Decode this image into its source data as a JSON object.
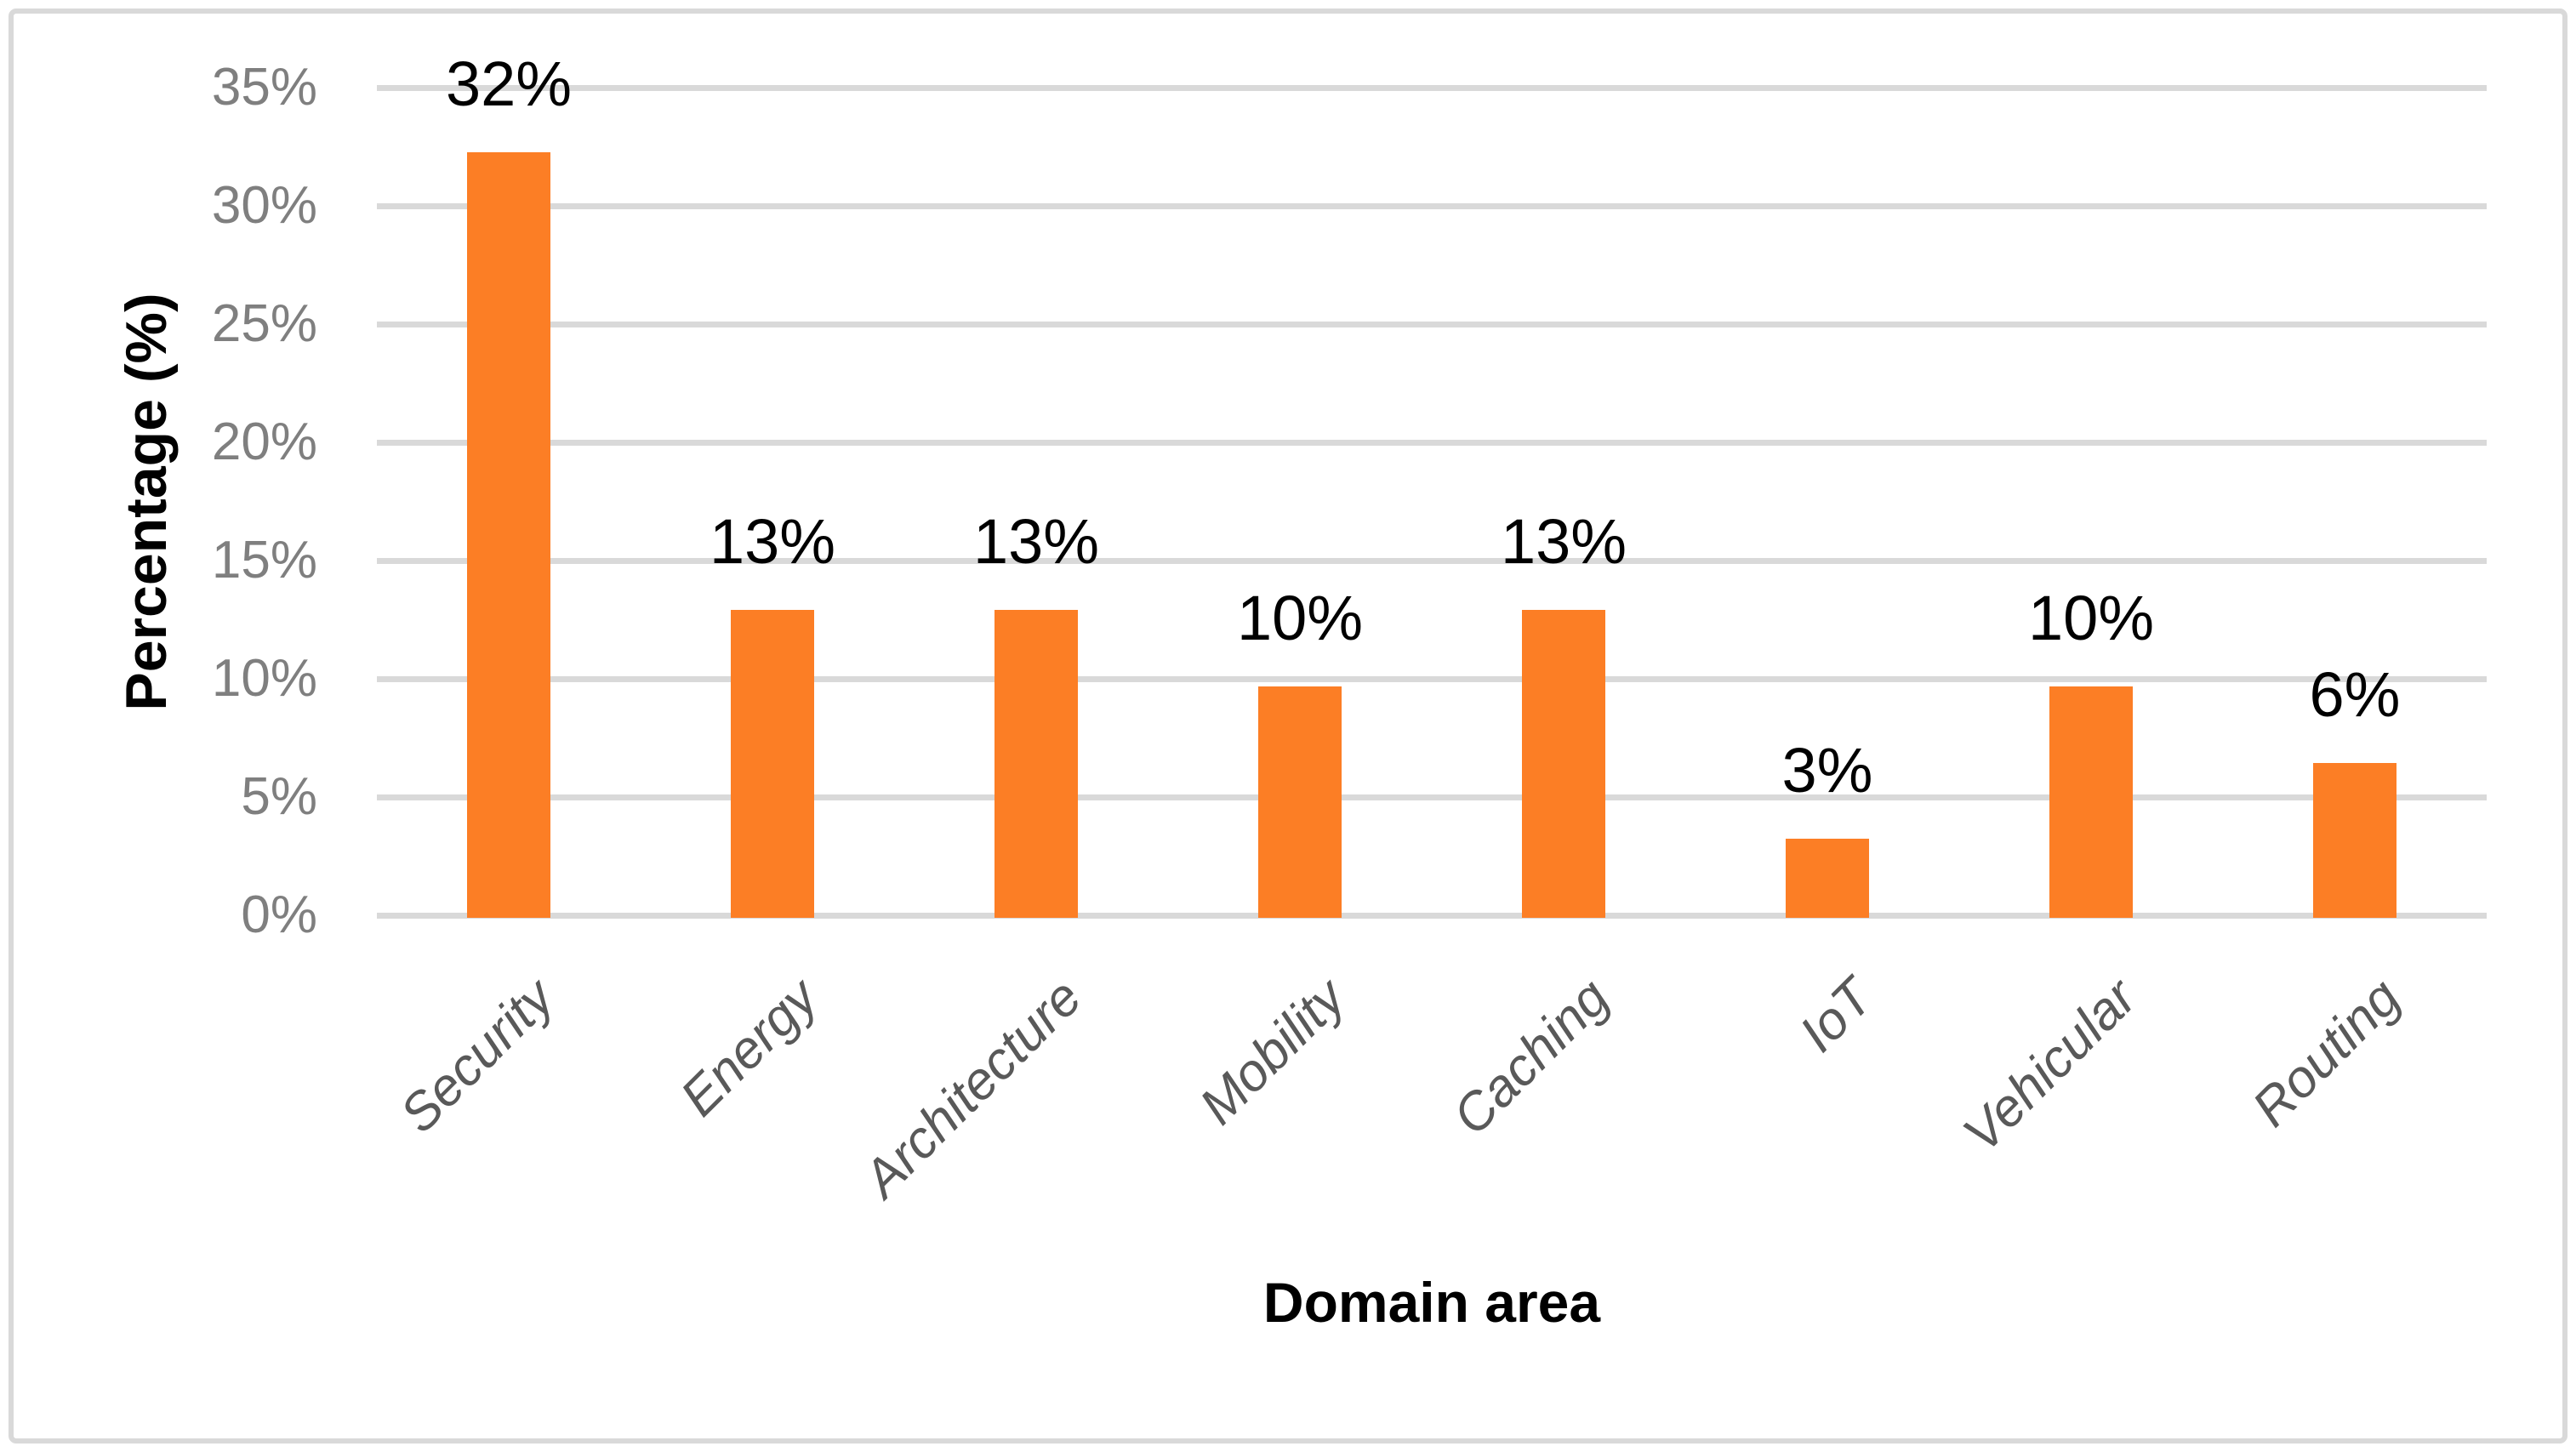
{
  "chart_data": {
    "type": "bar",
    "title": "",
    "xlabel": "Domain area",
    "ylabel": "Percentage (%)",
    "categories": [
      "Security",
      "Energy",
      "Architecture",
      "Mobility",
      "Caching",
      "IoT",
      "Vehicular",
      "Routing"
    ],
    "values": [
      32,
      13,
      13,
      10,
      13,
      3,
      10,
      6
    ],
    "value_labels": [
      "32%",
      "13%",
      "13%",
      "10%",
      "13%",
      "3%",
      "10%",
      "6%"
    ],
    "bar_heights_pct": [
      32.26,
      12.9,
      12.9,
      9.68,
      12.9,
      3.23,
      9.68,
      6.45
    ],
    "y_ticks": [
      0,
      5,
      10,
      15,
      20,
      25,
      30,
      35
    ],
    "y_tick_labels": [
      "0%",
      "5%",
      "10%",
      "15%",
      "20%",
      "25%",
      "30%",
      "35%"
    ],
    "ylim": [
      0,
      35
    ],
    "grid": true,
    "legend": false,
    "colors": {
      "bar": "#FC7E25",
      "gridline": "#D9D9D9",
      "frame_border": "#D9D9D9",
      "tick_label": "#7F7F7F",
      "category_label": "#595959",
      "data_label": "#000000",
      "axis_title": "#000000",
      "background": "#FFFFFF"
    }
  }
}
